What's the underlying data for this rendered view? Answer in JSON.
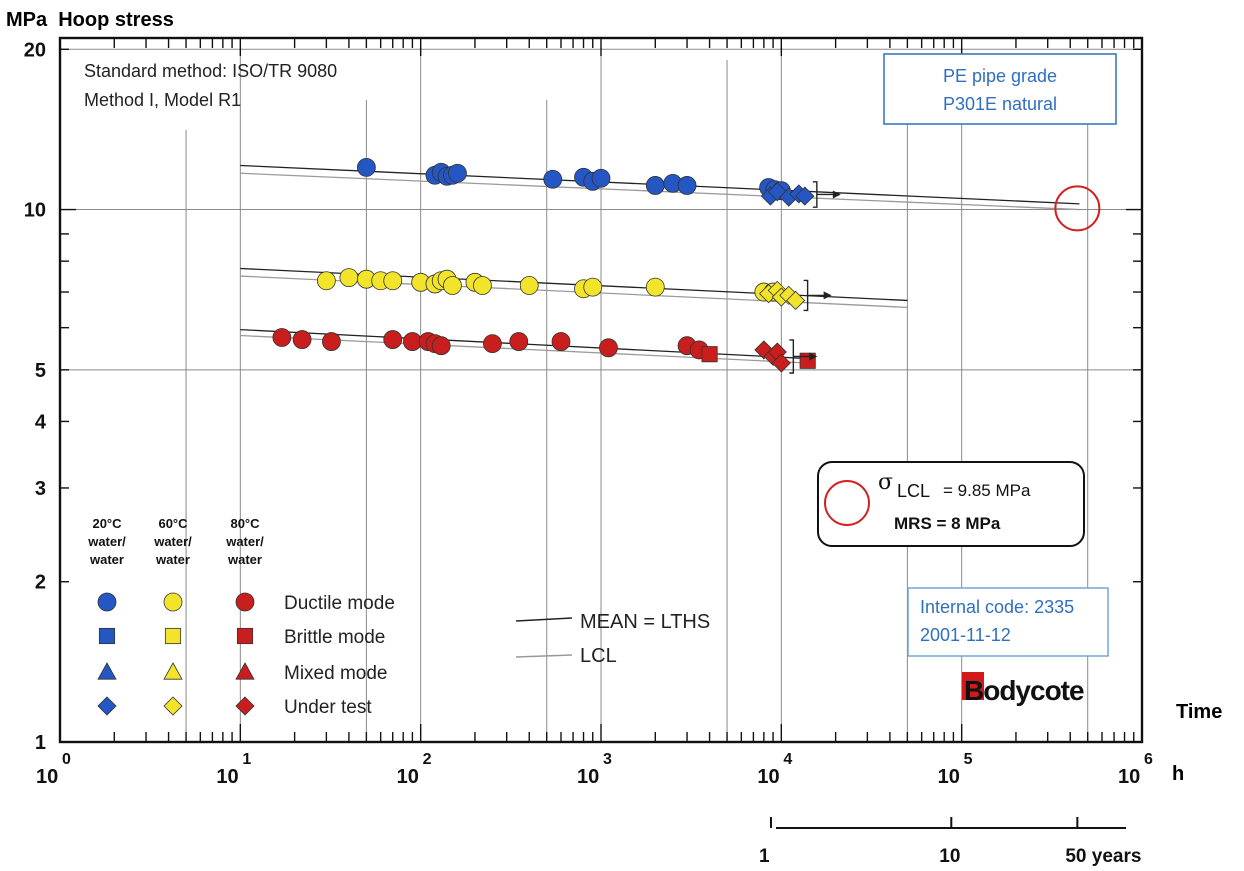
{
  "chart_data": {
    "type": "scatter",
    "y_axis_title": "MPa  Hoop stress",
    "x_axis_title": "Time",
    "x_unit": "h",
    "x_scale": "log",
    "y_scale": "log",
    "xlim": [
      1,
      1000000
    ],
    "ylim": [
      1,
      21
    ],
    "grid": true,
    "y_tick_labels": [
      {
        "v": 20,
        "t": "20"
      },
      {
        "v": 10,
        "t": "10"
      },
      {
        "v": 5,
        "t": "5"
      },
      {
        "v": 4,
        "t": "4"
      },
      {
        "v": 3,
        "t": "3"
      },
      {
        "v": 2,
        "t": "2"
      },
      {
        "v": 1,
        "t": "1"
      }
    ],
    "x_tick_labels": [
      {
        "exp": 0,
        "base": "10",
        "sup": "0"
      },
      {
        "exp": 1,
        "base": "10",
        "sup": "1"
      },
      {
        "exp": 2,
        "base": "10",
        "sup": "2"
      },
      {
        "exp": 3,
        "base": "10",
        "sup": "3"
      },
      {
        "exp": 4,
        "base": "10",
        "sup": "4"
      },
      {
        "exp": 5,
        "base": "10",
        "sup": "5"
      },
      {
        "exp": 6,
        "base": "10",
        "sup": "6"
      }
    ],
    "secondary_axis": {
      "ticks": [
        {
          "h": 8760,
          "label": "1"
        },
        {
          "h": 87600,
          "label": "10"
        },
        {
          "h": 438000,
          "label": "50 years"
        }
      ]
    },
    "series": [
      {
        "name": "20°C water/water",
        "color": "#2456c4",
        "ductile": [
          [
            50,
            12.0
          ],
          [
            120,
            11.6
          ],
          [
            130,
            11.75
          ],
          [
            140,
            11.55
          ],
          [
            150,
            11.6
          ],
          [
            160,
            11.7
          ],
          [
            540,
            11.4
          ],
          [
            800,
            11.5
          ],
          [
            900,
            11.3
          ],
          [
            1000,
            11.45
          ],
          [
            2000,
            11.1
          ],
          [
            2500,
            11.2
          ],
          [
            3000,
            11.1
          ],
          [
            8500,
            11.0
          ],
          [
            9200,
            10.9
          ],
          [
            10000,
            10.85
          ]
        ],
        "under_test": [
          [
            8700,
            10.6
          ],
          [
            9500,
            10.8
          ],
          [
            11000,
            10.55
          ],
          [
            12500,
            10.7
          ],
          [
            13500,
            10.6
          ]
        ],
        "mean_line": {
          "x": [
            10,
            450000
          ],
          "y": [
            12.1,
            10.25
          ]
        },
        "lcl_line": {
          "x": [
            10,
            450000
          ],
          "y": [
            11.7,
            10.0
          ]
        }
      },
      {
        "name": "60°C water/water",
        "color": "#f2e42a",
        "ductile": [
          [
            30,
            7.35
          ],
          [
            40,
            7.45
          ],
          [
            50,
            7.4
          ],
          [
            60,
            7.35
          ],
          [
            70,
            7.35
          ],
          [
            100,
            7.3
          ],
          [
            120,
            7.25
          ],
          [
            130,
            7.35
          ],
          [
            140,
            7.4
          ],
          [
            150,
            7.2
          ],
          [
            200,
            7.3
          ],
          [
            220,
            7.2
          ],
          [
            400,
            7.2
          ],
          [
            800,
            7.1
          ],
          [
            900,
            7.15
          ],
          [
            2000,
            7.15
          ],
          [
            8000,
            7.0
          ],
          [
            9000,
            7.0
          ]
        ],
        "under_test": [
          [
            8500,
            6.95
          ],
          [
            9500,
            7.05
          ],
          [
            10000,
            6.85
          ],
          [
            11000,
            6.9
          ],
          [
            12000,
            6.75
          ]
        ],
        "mean_line": {
          "x": [
            10,
            50000
          ],
          "y": [
            7.75,
            6.75
          ]
        },
        "lcl_line": {
          "x": [
            10,
            50000
          ],
          "y": [
            7.5,
            6.55
          ]
        }
      },
      {
        "name": "80°C water/water",
        "color": "#c91e1e",
        "ductile": [
          [
            17,
            5.75
          ],
          [
            22,
            5.7
          ],
          [
            32,
            5.65
          ],
          [
            70,
            5.7
          ],
          [
            90,
            5.65
          ],
          [
            110,
            5.65
          ],
          [
            120,
            5.6
          ],
          [
            130,
            5.55
          ],
          [
            250,
            5.6
          ],
          [
            350,
            5.65
          ],
          [
            600,
            5.65
          ],
          [
            1100,
            5.5
          ],
          [
            3000,
            5.55
          ],
          [
            3500,
            5.45
          ]
        ],
        "brittle": [
          [
            4000,
            5.35
          ],
          [
            14000,
            5.2
          ]
        ],
        "under_test": [
          [
            8000,
            5.45
          ],
          [
            9000,
            5.3
          ],
          [
            9500,
            5.4
          ],
          [
            10000,
            5.15
          ]
        ],
        "mean_line": {
          "x": [
            10,
            14000
          ],
          "y": [
            5.95,
            5.25
          ]
        },
        "lcl_line": {
          "x": [
            10,
            14000
          ],
          "y": [
            5.8,
            5.15
          ]
        }
      }
    ],
    "extrapolation_point": {
      "x": 438000,
      "y": 10.05
    },
    "reference_lines": {
      "horizontal": [
        20,
        10,
        5
      ],
      "vertical": [
        10,
        100,
        1000,
        10000,
        100000,
        1000000
      ]
    },
    "top_left_note": [
      "Standard method: ISO/TR 9080",
      "Method I, Model R1"
    ],
    "material_box": [
      "PE pipe grade",
      "P301E natural"
    ],
    "result_box": {
      "sigma_symbol": "σ",
      "sigma_sub": "LCL",
      "sigma_value": "= 9.85 MPa",
      "mrs": "MRS = 8 MPa"
    },
    "legend": {
      "columns": [
        {
          "temp": "20°C",
          "media1": "water/",
          "media2": "water",
          "color": "#2456c4"
        },
        {
          "temp": "60°C",
          "media1": "water/",
          "media2": "water",
          "color": "#f2e42a"
        },
        {
          "temp": "80°C",
          "media1": "water/",
          "media2": "water",
          "color": "#c91e1e"
        }
      ],
      "rows": [
        {
          "shape": "circle",
          "label": "Ductile mode"
        },
        {
          "shape": "square",
          "label": "Brittle mode"
        },
        {
          "shape": "triangle",
          "label": "Mixed mode"
        },
        {
          "shape": "diamond",
          "label": "Under test"
        }
      ],
      "lines": [
        {
          "label": "MEAN = LTHS",
          "color": "#222222"
        },
        {
          "label": "LCL",
          "color": "#999999"
        }
      ]
    },
    "internal_box": [
      "Internal code: 2335",
      "2001-11-12"
    ],
    "logo": {
      "text": "Bodycote",
      "color": "#d11a1a"
    }
  }
}
